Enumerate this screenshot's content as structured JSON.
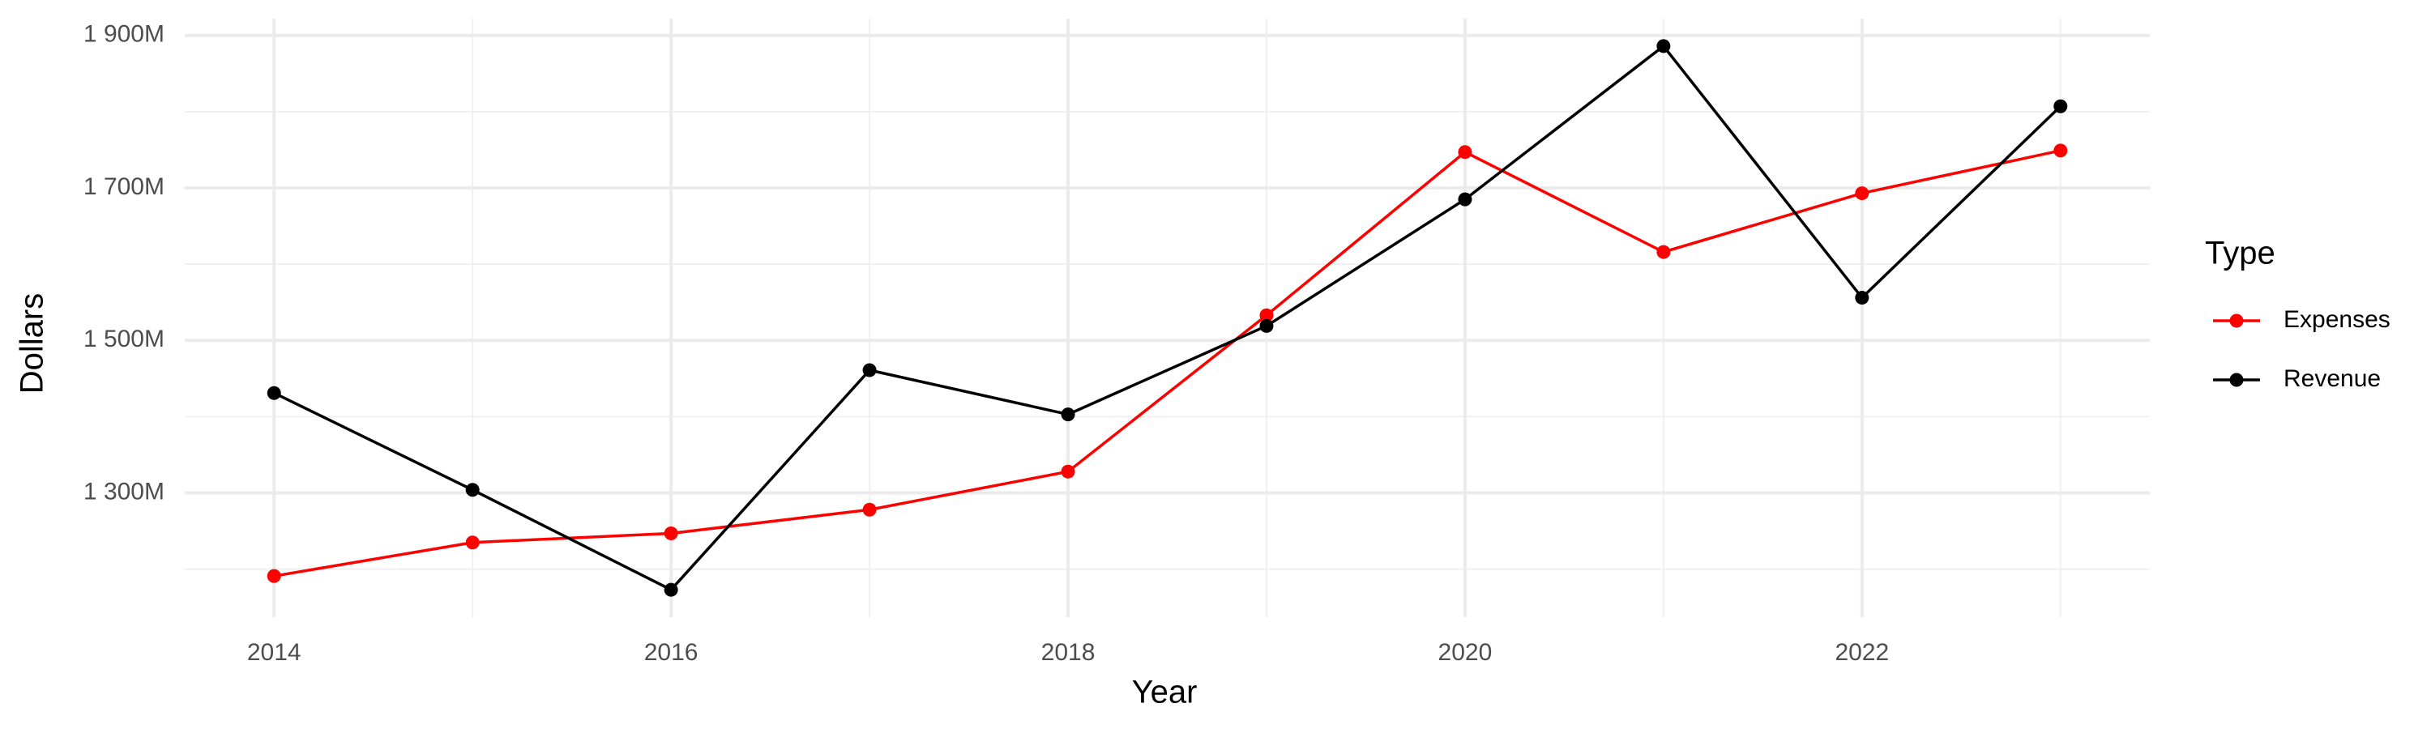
{
  "chart_data": {
    "type": "line",
    "x_label": "Year",
    "y_label": "Dollars",
    "legend_title": "Type",
    "x": [
      2014,
      2015,
      2016,
      2017,
      2018,
      2019,
      2020,
      2021,
      2022,
      2023
    ],
    "series": [
      {
        "name": "Expenses",
        "color": "#ff0000",
        "values": [
          1191,
          1235,
          1247,
          1278,
          1328,
          1533,
          1747,
          1616,
          1693,
          1749
        ]
      },
      {
        "name": "Revenue",
        "color": "#000000",
        "values": [
          1431,
          1304,
          1173,
          1461,
          1403,
          1519,
          1685,
          1886,
          1556,
          1807
        ]
      }
    ],
    "xlim": [
      2013.55,
      2023.45
    ],
    "xticks": [
      2014,
      2016,
      2018,
      2020,
      2022
    ],
    "ylim": [
      1137,
      1922
    ],
    "yticks": [
      {
        "value": 1300,
        "label": "1 300M"
      },
      {
        "value": 1500,
        "label": "1 500M"
      },
      {
        "value": 1700,
        "label": "1 700M"
      },
      {
        "value": 1900,
        "label": "1 900M"
      }
    ],
    "grid": true,
    "legend": "right"
  }
}
